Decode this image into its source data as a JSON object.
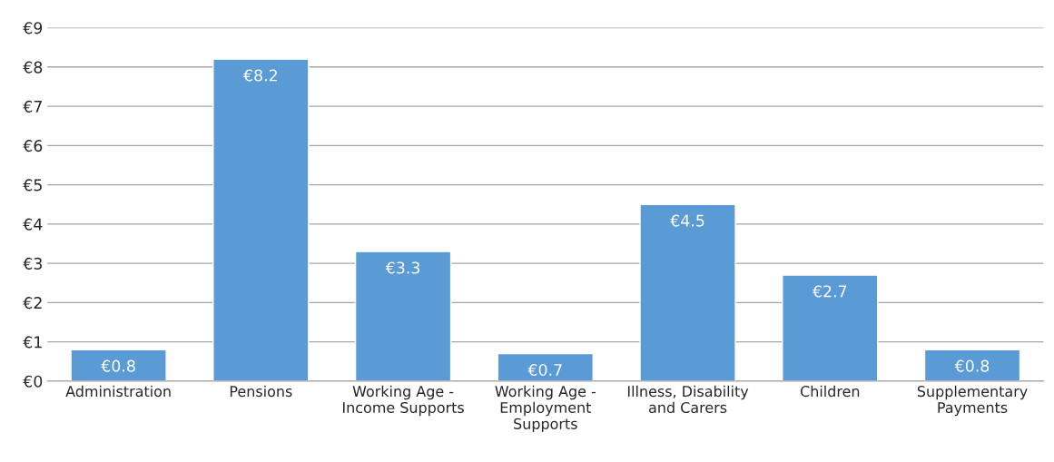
{
  "chart_data": {
    "type": "bar",
    "categories": [
      "Administration",
      "Pensions",
      "Working Age -\nIncome Supports",
      "Working Age -\nEmployment\nSupports",
      "Illness, Disability\nand Carers",
      "Children",
      "Supplementary\nPayments"
    ],
    "values": [
      0.8,
      8.2,
      3.3,
      0.7,
      4.5,
      2.7,
      0.8
    ],
    "value_labels": [
      "€0.8",
      "€8.2",
      "€3.3",
      "€0.7",
      "€4.5",
      "€2.7",
      "€0.8"
    ],
    "color": "#5b9bd5",
    "ylim": [
      0,
      9
    ],
    "yticks": [
      {
        "value": 0,
        "label": "€0"
      },
      {
        "value": 1,
        "label": "€1"
      },
      {
        "value": 2,
        "label": "€2"
      },
      {
        "value": 3,
        "label": "€3"
      },
      {
        "value": 4,
        "label": "€4"
      },
      {
        "value": 5,
        "label": "€5"
      },
      {
        "value": 6,
        "label": "€6"
      },
      {
        "value": 7,
        "label": "€7"
      },
      {
        "value": 8,
        "label": "€8"
      },
      {
        "value": 9,
        "label": "€9"
      }
    ],
    "grid": "y",
    "legend": false
  }
}
